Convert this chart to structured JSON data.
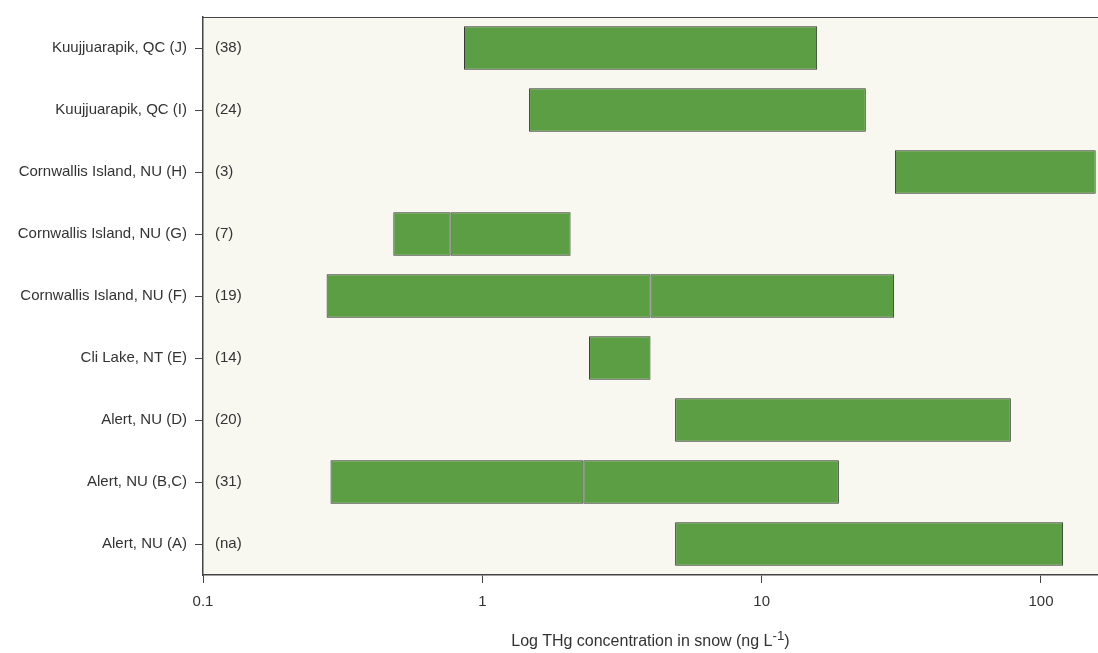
{
  "chart_data": {
    "type": "bar",
    "orientation": "horizontal",
    "xlabel": "Log THg concentration in snow (ng L$^{-1}$)",
    "categories": [
      "Kuujjuarapik, QC (J)",
      "Kuujjuarapik, QC (I)",
      "Cornwallis Island, NU (H)",
      "Cornwallis Island, NU (G)",
      "Cornwallis Island, NU (F)",
      "Cli Lake, NT (E)",
      "Alert, NU (D)",
      "Alert, NU (B,C)",
      "Alert, NU (A)"
    ],
    "series": [
      {
        "color": "#5c9e44",
        "base": [
          0.86,
          1.47,
          30,
          0.48,
          0.277,
          2.41,
          4.9,
          0.286,
          4.9
        ],
        "values": [
          14.94,
          22.13,
          127,
          0.29,
          3.723,
          1.59,
          73.1,
          2.014,
          115.1
        ]
      },
      {
        "color": "#5c9e44",
        "base": [
          null,
          null,
          null,
          0.77,
          4.0,
          null,
          null,
          2.3,
          null
        ],
        "values": [
          null,
          null,
          null,
          1.3,
          25.8,
          null,
          null,
          16.6,
          null
        ]
      }
    ],
    "xlim": [
      0.1,
      160
    ],
    "xticks": [
      0.1,
      1,
      10,
      100
    ],
    "log": "x",
    "grid": false,
    "legend": false,
    "annotations": [
      "(38)",
      "(24)",
      "(3)",
      "(7)",
      "(19)",
      "(14)",
      "(20)",
      "(31)",
      "(na)"
    ]
  }
}
